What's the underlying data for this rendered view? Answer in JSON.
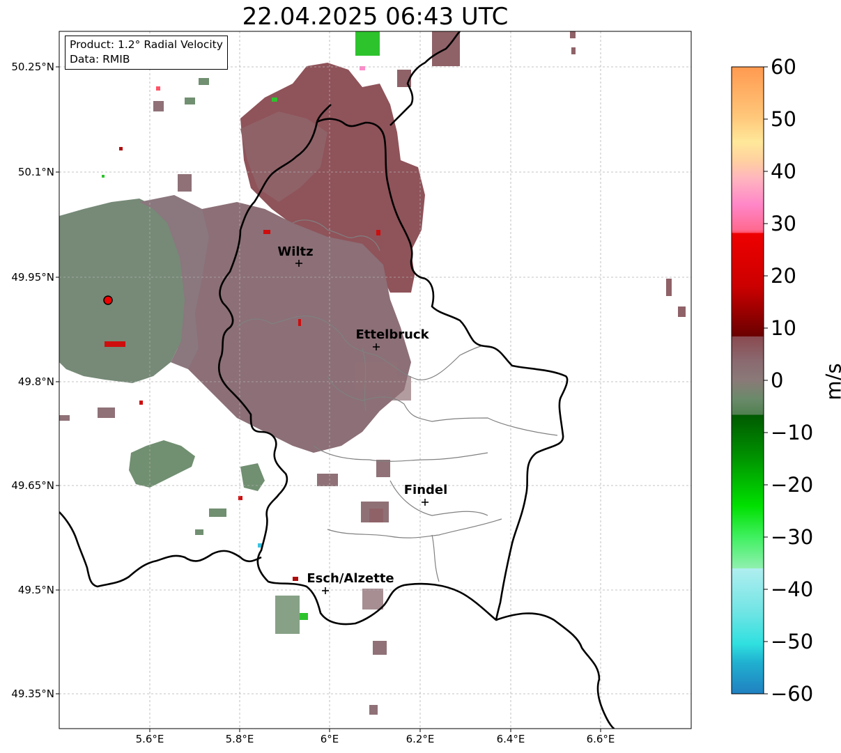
{
  "title": "22.04.2025 06:43 UTC",
  "info_box": {
    "product": "Product: 1.2° Radial Velocity",
    "data": "Data: RMIB"
  },
  "map": {
    "type": "radar-velocity-map",
    "lat_ticks": [
      "50.25°N",
      "50.1°N",
      "49.95°N",
      "49.8°N",
      "49.65°N",
      "49.5°N",
      "49.35°N"
    ],
    "lon_ticks": [
      "5.6°E",
      "5.8°E",
      "6°E",
      "6.2°E",
      "6.4°E",
      "6.6°E"
    ],
    "cities": [
      {
        "name": "Wiltz",
        "lon": 5.93,
        "lat": 49.966
      },
      {
        "name": "Ettelbruck",
        "lon": 6.1,
        "lat": 49.85
      },
      {
        "name": "Findel",
        "lon": 6.21,
        "lat": 49.627
      },
      {
        "name": "Esch/Alzette",
        "lon": 5.99,
        "lat": 49.5
      }
    ],
    "radar_site": {
      "lon": 5.505,
      "lat": 49.915
    },
    "grid": true
  },
  "colorbar": {
    "label": "m/s",
    "range": [
      -60,
      60
    ],
    "ticks": [
      "60",
      "50",
      "40",
      "30",
      "20",
      "10",
      "0",
      "−10",
      "−20",
      "−30",
      "−40",
      "−50",
      "−60"
    ],
    "colors": {
      "high": "#ff9a50",
      "orange_light": "#ffc77a",
      "yellow": "#ffe89a",
      "pink_light": "#ffb3c0",
      "pink": "#ff86c8",
      "red_pink": "#ff5a70",
      "red": "#ee0000",
      "dark_red": "#7a0000",
      "brown": "#8a5a5e",
      "grey_brown": "#8a7a7a",
      "grey_green": "#6a8a6a",
      "dark_green": "#006400",
      "green": "#00cc00",
      "light_green": "#80f090",
      "light_cyan": "#b0f0f0",
      "cyan": "#30e0e0",
      "blue": "#2080c0"
    }
  }
}
